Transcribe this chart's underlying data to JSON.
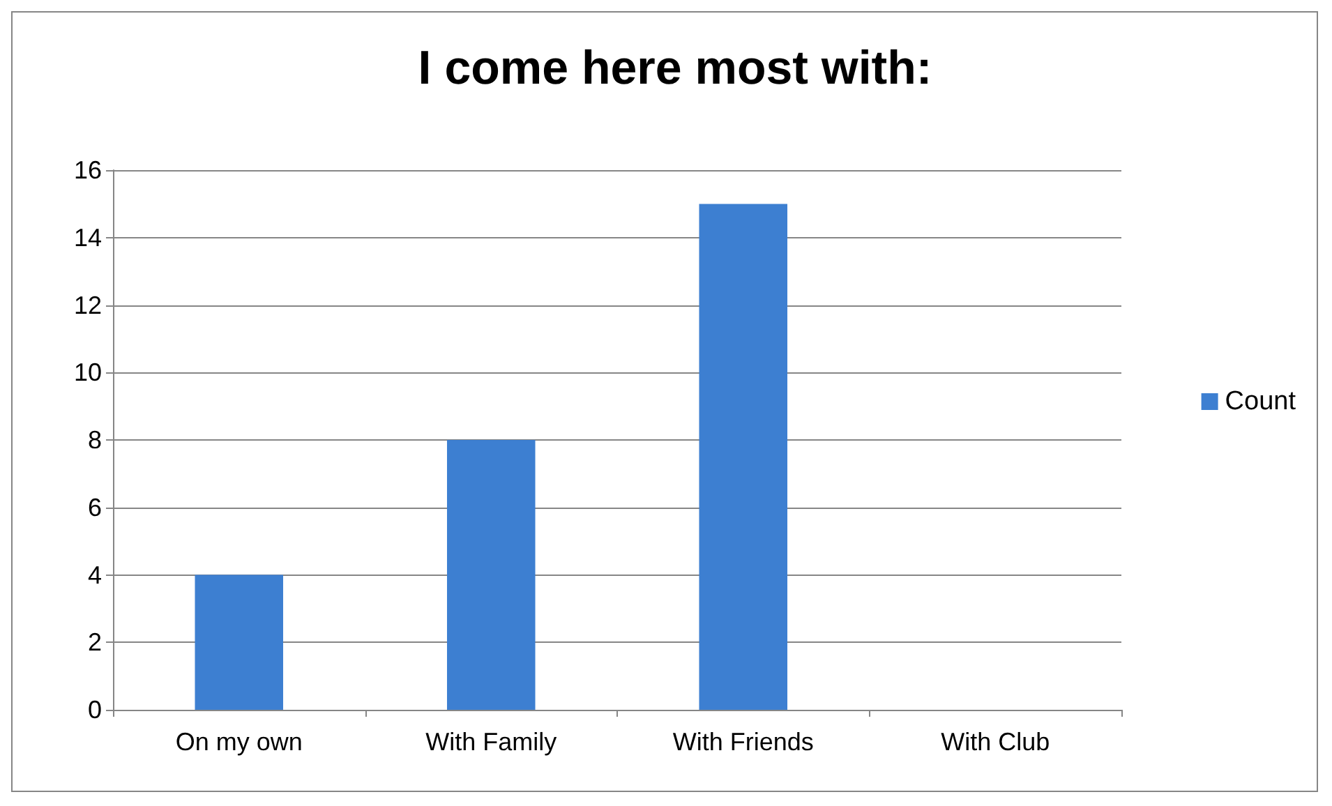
{
  "chart_data": {
    "type": "bar",
    "title": "I come here most with:",
    "categories": [
      "On my own",
      "With Family",
      "With Friends",
      "With Club"
    ],
    "series": [
      {
        "name": "Count",
        "color": "#3d7fd1",
        "values": [
          4,
          8,
          15,
          0
        ]
      }
    ],
    "ylim": [
      0,
      16
    ],
    "yticks": [
      0,
      2,
      4,
      6,
      8,
      10,
      12,
      14,
      16
    ],
    "grid": "y",
    "legend": "right"
  }
}
